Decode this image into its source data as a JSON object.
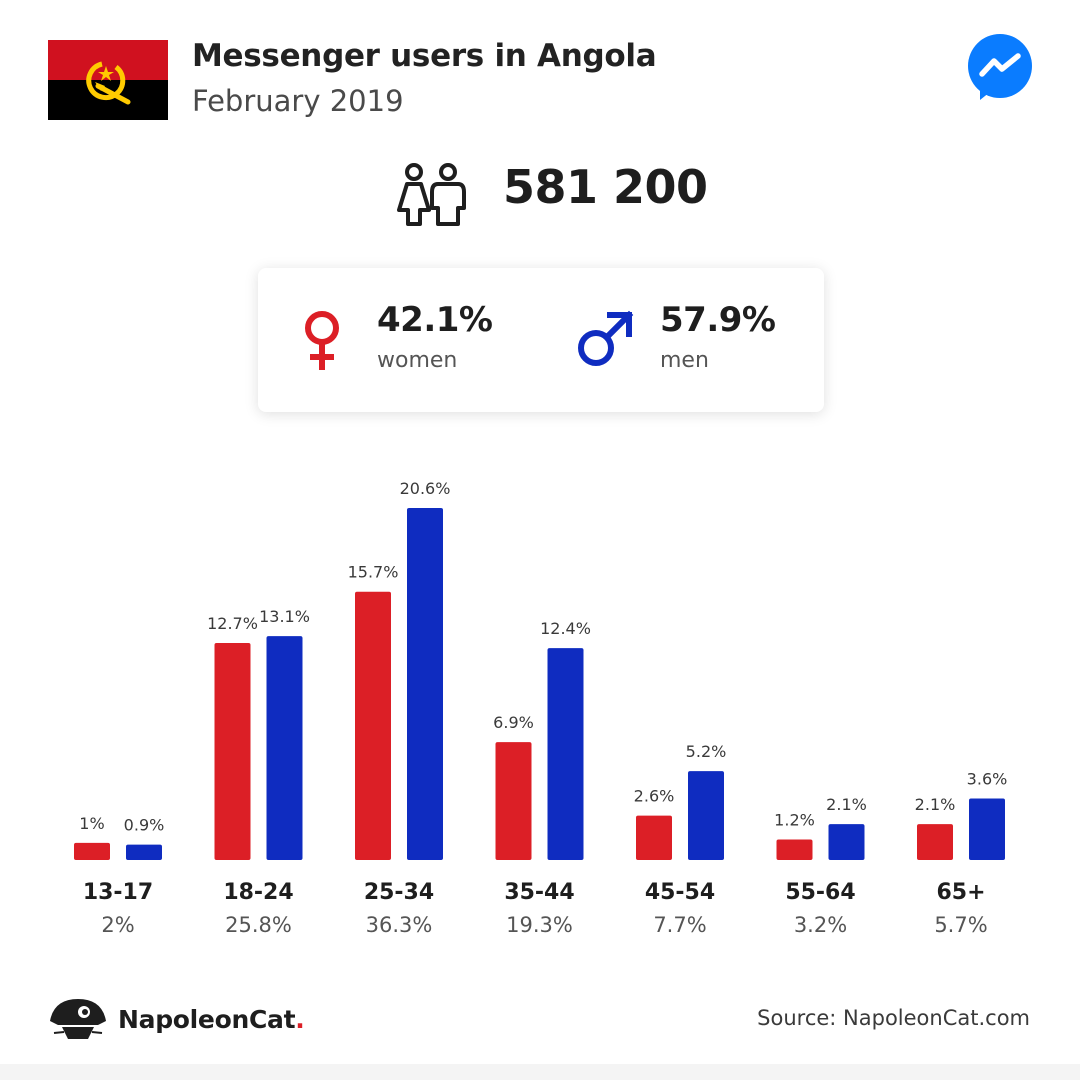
{
  "header": {
    "title": "Messenger users in Angola",
    "subtitle": "February 2019"
  },
  "total": {
    "value": "581 200",
    "icon": "users-icon"
  },
  "gender": {
    "women": {
      "pct": "42.1%",
      "label": "women",
      "icon": "female-symbol-icon",
      "color": "#dc1f26"
    },
    "men": {
      "pct": "57.9%",
      "label": "men",
      "icon": "male-symbol-icon",
      "color": "#0f2cc0"
    }
  },
  "colors": {
    "women": "#dc1f26",
    "men": "#0f2cc0"
  },
  "chart_data": {
    "type": "bar",
    "categories": [
      "13-17",
      "18-24",
      "25-34",
      "35-44",
      "45-54",
      "55-64",
      "65+"
    ],
    "category_totals": [
      "2%",
      "25.8%",
      "36.3%",
      "19.3%",
      "7.7%",
      "3.2%",
      "5.7%"
    ],
    "series": [
      {
        "key": "women",
        "values": [
          1,
          12.7,
          15.7,
          6.9,
          2.6,
          1.2,
          2.1
        ],
        "labels": [
          "1%",
          "12.7%",
          "15.7%",
          "6.9%",
          "2.6%",
          "1.2%",
          "2.1%"
        ]
      },
      {
        "key": "men",
        "values": [
          0.9,
          13.1,
          20.6,
          12.4,
          5.2,
          2.1,
          3.6
        ],
        "labels": [
          "0.9%",
          "13.1%",
          "20.6%",
          "12.4%",
          "5.2%",
          "2.1%",
          "3.6%"
        ]
      }
    ],
    "ylim": [
      0,
      20.6
    ],
    "grid": false
  },
  "footer": {
    "brand": "NapoleonCat",
    "brand_dot": ".",
    "source": "Source: NapoleonCat.com"
  }
}
